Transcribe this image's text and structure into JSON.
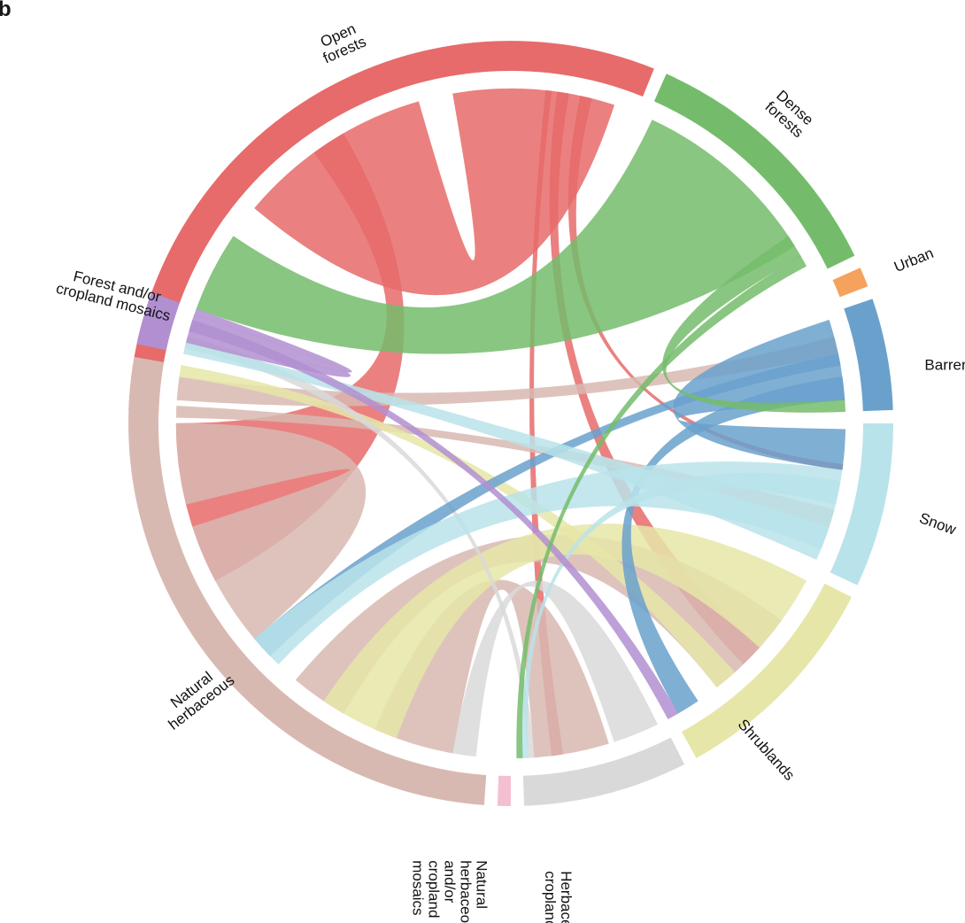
{
  "panel_letter": "b",
  "chart_data": {
    "type": "chord",
    "segments": [
      {
        "id": "open_forests",
        "label_lines": [
          "Open",
          "forests"
        ],
        "color": "#e66b6a"
      },
      {
        "id": "dense_forests",
        "label_lines": [
          "Dense",
          "forests"
        ],
        "color": "#74bc6b"
      },
      {
        "id": "urban",
        "label_lines": [
          "Urban"
        ],
        "color": "#f5a25d"
      },
      {
        "id": "barren",
        "label_lines": [
          "Barren"
        ],
        "color": "#6aa1cc"
      },
      {
        "id": "snow",
        "label_lines": [
          "Snow"
        ],
        "color": "#b9e3ea"
      },
      {
        "id": "shrublands",
        "label_lines": [
          "Shrublands"
        ],
        "color": "#e6e6a8"
      },
      {
        "id": "herbaceous_croplands",
        "label_lines": [
          "Herbaceous",
          "croplands"
        ],
        "color": "#d9d9d9"
      },
      {
        "id": "natural_herb_cropland_mosaics",
        "label_lines": [
          "Natural",
          "herbaceous",
          "and/or",
          "cropland",
          "mosaics"
        ],
        "color": "#f5bfd2"
      },
      {
        "id": "natural_herbaceous",
        "label_lines": [
          "Natural",
          "herbaceous"
        ],
        "color": "#d8b9b1"
      },
      {
        "id": "forest_cropland_mosaics",
        "label_lines": [
          "Forest and/or",
          "cropland mosaics"
        ],
        "color": "#b18fd1"
      }
    ]
  }
}
